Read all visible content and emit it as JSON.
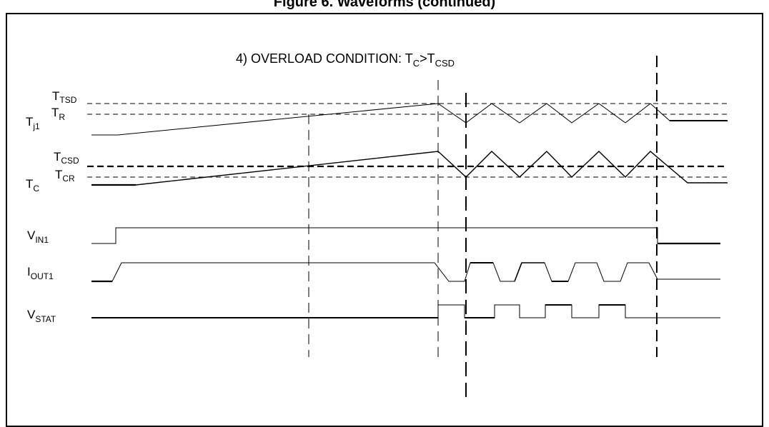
{
  "figure_title": "Figure 6. Waveforms (continued)",
  "condition": {
    "prefix": "4) OVERLOAD CONDITION: T",
    "sub1": "C",
    "mid": ">T",
    "sub2": "CSD"
  },
  "labels": {
    "ttsd": {
      "main": "T",
      "sub": "TSD"
    },
    "tr": {
      "main": "T",
      "sub": "R"
    },
    "tj1": {
      "main": "T",
      "sub": "j1"
    },
    "tcsd": {
      "main": "T",
      "sub": "CSD"
    },
    "tcr": {
      "main": "T",
      "sub": "CR"
    },
    "tc": {
      "main": "T",
      "sub": "C"
    },
    "vin1": {
      "main": "V",
      "sub": "IN1"
    },
    "iout1": {
      "main": "I",
      "sub": "OUT1"
    },
    "vstat": {
      "main": "V",
      "sub": "STAT"
    }
  }
}
